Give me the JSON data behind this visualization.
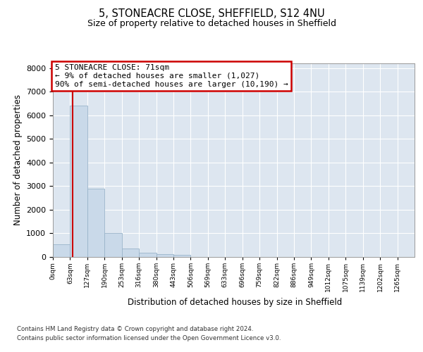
{
  "title1": "5, STONEACRE CLOSE, SHEFFIELD, S12 4NU",
  "title2": "Size of property relative to detached houses in Sheffield",
  "xlabel": "Distribution of detached houses by size in Sheffield",
  "ylabel": "Number of detached properties",
  "footnote1": "Contains HM Land Registry data © Crown copyright and database right 2024.",
  "footnote2": "Contains public sector information licensed under the Open Government Licence v3.0.",
  "bin_labels": [
    "0sqm",
    "63sqm",
    "127sqm",
    "190sqm",
    "253sqm",
    "316sqm",
    "380sqm",
    "443sqm",
    "506sqm",
    "569sqm",
    "633sqm",
    "696sqm",
    "759sqm",
    "822sqm",
    "886sqm",
    "949sqm",
    "1012sqm",
    "1075sqm",
    "1139sqm",
    "1202sqm",
    "1265sqm"
  ],
  "bar_values": [
    550,
    6400,
    2900,
    1000,
    370,
    190,
    120,
    80,
    0,
    0,
    0,
    0,
    0,
    0,
    0,
    0,
    0,
    0,
    0,
    0,
    0
  ],
  "bar_color": "#c9d9e9",
  "bar_edge_color": "#9ab4ca",
  "property_size": 71,
  "bin_width": 63,
  "annotation_title": "5 STONEACRE CLOSE: 71sqm",
  "annotation_line1": "← 9% of detached houses are smaller (1,027)",
  "annotation_line2": "90% of semi-detached houses are larger (10,190) →",
  "vline_color": "#cc0000",
  "annotation_box_edge_color": "#cc0000",
  "ylim_max": 8200,
  "yticks": [
    0,
    1000,
    2000,
    3000,
    4000,
    5000,
    6000,
    7000,
    8000
  ],
  "plot_bg_color": "#dde6f0",
  "grid_color": "#ffffff",
  "fig_bg_color": "#ffffff"
}
